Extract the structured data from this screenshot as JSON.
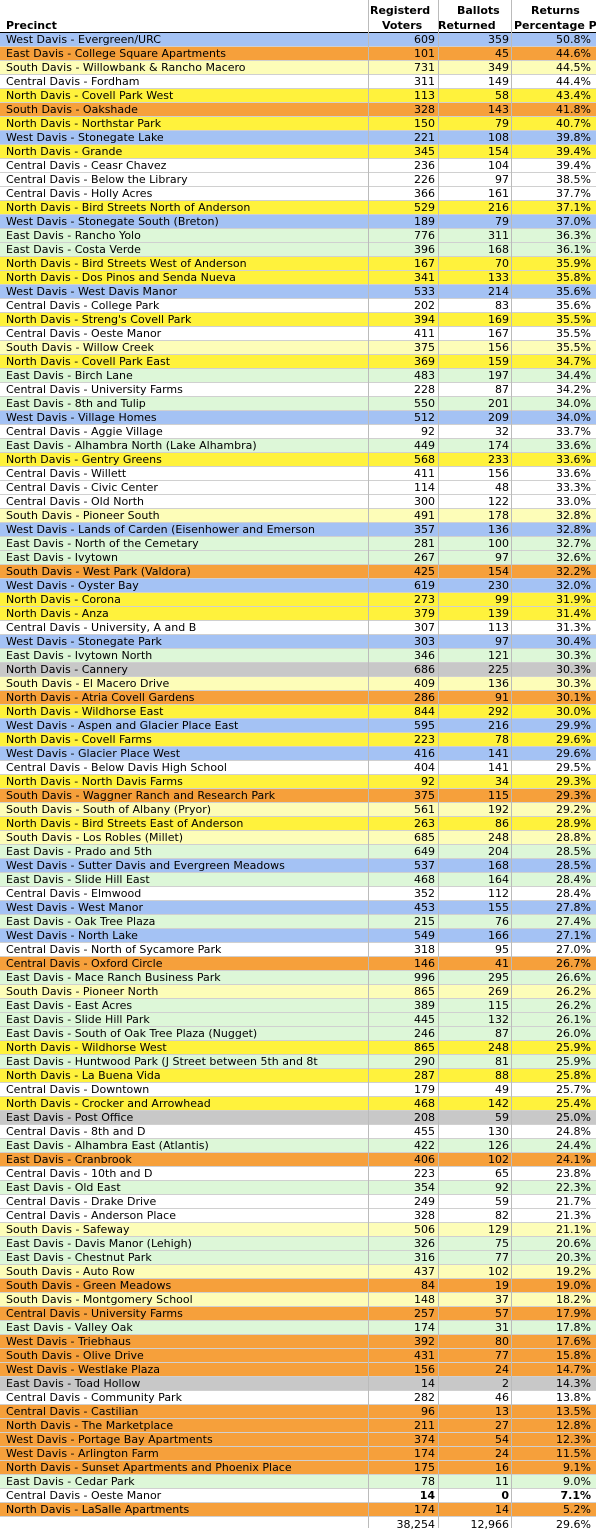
{
  "header": {
    "precinct": "Precinct",
    "registered_1": "Registerd",
    "registered_2": "Voters",
    "ballots_1": "Ballots",
    "ballots_2": "Returned",
    "returns_1": "Returns",
    "returns_2": "Percentage P"
  },
  "colors": {
    "blue": "#a4c2f4",
    "orange": "#f6a03b",
    "yellow": "#fff23c",
    "lightyellow": "#fdfdb8",
    "green": "#ddf7d8",
    "gray": "#c8c8c8",
    "white": "#ffffff"
  },
  "rows": [
    {
      "name": "West Davis - Evergreen/URC",
      "reg": "609",
      "bal": "359",
      "pct": "50.8%",
      "c": "blue"
    },
    {
      "name": "East Davis - College Square Apartments",
      "reg": "101",
      "bal": "45",
      "pct": "44.6%",
      "c": "orange"
    },
    {
      "name": "South Davis - Willowbank & Rancho Macero",
      "reg": "731",
      "bal": "349",
      "pct": "44.5%",
      "c": "lightyellow"
    },
    {
      "name": "Central Davis - Fordham",
      "reg": "311",
      "bal": "149",
      "pct": "44.4%",
      "c": "white"
    },
    {
      "name": "North Davis - Covell Park West",
      "reg": "113",
      "bal": "58",
      "pct": "43.4%",
      "c": "yellow"
    },
    {
      "name": "South Davis - Oakshade",
      "reg": "328",
      "bal": "143",
      "pct": "41.8%",
      "c": "orange"
    },
    {
      "name": "North Davis - Northstar Park",
      "reg": "150",
      "bal": "79",
      "pct": "40.7%",
      "c": "yellow"
    },
    {
      "name": "West Davis - Stonegate Lake",
      "reg": "221",
      "bal": "108",
      "pct": "39.8%",
      "c": "blue"
    },
    {
      "name": "North Davis - Grande",
      "reg": "345",
      "bal": "154",
      "pct": "39.4%",
      "c": "yellow"
    },
    {
      "name": "Central Davis - Ceasr Chavez",
      "reg": "236",
      "bal": "104",
      "pct": "39.4%",
      "c": "white"
    },
    {
      "name": "Central Davis - Below the Library",
      "reg": "226",
      "bal": "97",
      "pct": "38.5%",
      "c": "white"
    },
    {
      "name": "Central Davis - Holly Acres",
      "reg": "366",
      "bal": "161",
      "pct": "37.7%",
      "c": "white"
    },
    {
      "name": "North Davis - Bird Streets North of Anderson",
      "reg": "529",
      "bal": "216",
      "pct": "37.1%",
      "c": "yellow"
    },
    {
      "name": "West Davis - Stonegate South (Breton)",
      "reg": "189",
      "bal": "79",
      "pct": "37.0%",
      "c": "blue"
    },
    {
      "name": "East Davis - Rancho Yolo",
      "reg": "776",
      "bal": "311",
      "pct": "36.3%",
      "c": "green"
    },
    {
      "name": "East Davis - Costa Verde",
      "reg": "396",
      "bal": "168",
      "pct": "36.1%",
      "c": "green"
    },
    {
      "name": "North Davis - Bird Streets West of Anderson",
      "reg": "167",
      "bal": "70",
      "pct": "35.9%",
      "c": "yellow"
    },
    {
      "name": "North Davis - Dos Pinos and Senda Nueva",
      "reg": "341",
      "bal": "133",
      "pct": "35.8%",
      "c": "yellow"
    },
    {
      "name": "West Davis - West Davis Manor",
      "reg": "533",
      "bal": "214",
      "pct": "35.6%",
      "c": "blue"
    },
    {
      "name": "Central Davis - College Park",
      "reg": "202",
      "bal": "83",
      "pct": "35.6%",
      "c": "white"
    },
    {
      "name": "North Davis - Streng's Covell Park",
      "reg": "394",
      "bal": "169",
      "pct": "35.5%",
      "c": "yellow"
    },
    {
      "name": "Central Davis - Oeste Manor",
      "reg": "411",
      "bal": "167",
      "pct": "35.5%",
      "c": "white"
    },
    {
      "name": "South Davis - Willow Creek",
      "reg": "375",
      "bal": "156",
      "pct": "35.5%",
      "c": "lightyellow"
    },
    {
      "name": "North Davis - Covell Park East",
      "reg": "369",
      "bal": "159",
      "pct": "34.7%",
      "c": "yellow"
    },
    {
      "name": "East Davis - Birch Lane",
      "reg": "483",
      "bal": "197",
      "pct": "34.4%",
      "c": "green"
    },
    {
      "name": "Central Davis - University Farms",
      "reg": "228",
      "bal": "87",
      "pct": "34.2%",
      "c": "white"
    },
    {
      "name": "East Davis - 8th and Tulip",
      "reg": "550",
      "bal": "201",
      "pct": "34.0%",
      "c": "green"
    },
    {
      "name": "West Davis - Village Homes",
      "reg": "512",
      "bal": "209",
      "pct": "34.0%",
      "c": "blue"
    },
    {
      "name": "Central Davis - Aggie Village",
      "reg": "92",
      "bal": "32",
      "pct": "33.7%",
      "c": "white"
    },
    {
      "name": "East Davis - Alhambra North (Lake Alhambra)",
      "reg": "449",
      "bal": "174",
      "pct": "33.6%",
      "c": "green"
    },
    {
      "name": "North Davis - Gentry Greens",
      "reg": "568",
      "bal": "233",
      "pct": "33.6%",
      "c": "yellow"
    },
    {
      "name": "Central Davis - Willett",
      "reg": "411",
      "bal": "156",
      "pct": "33.6%",
      "c": "white"
    },
    {
      "name": "Central Davis - Civic Center",
      "reg": "114",
      "bal": "48",
      "pct": "33.3%",
      "c": "white"
    },
    {
      "name": "Central Davis - Old North",
      "reg": "300",
      "bal": "122",
      "pct": "33.0%",
      "c": "white"
    },
    {
      "name": "South Davis - Pioneer South",
      "reg": "491",
      "bal": "178",
      "pct": "32.8%",
      "c": "lightyellow"
    },
    {
      "name": "West Davis - Lands of Carden (Eisenhower and Emerson",
      "reg": "357",
      "bal": "136",
      "pct": "32.8%",
      "c": "blue"
    },
    {
      "name": "East Davis - North of the Cemetary",
      "reg": "281",
      "bal": "100",
      "pct": "32.7%",
      "c": "green"
    },
    {
      "name": "East Davis - Ivytown",
      "reg": "267",
      "bal": "97",
      "pct": "32.6%",
      "c": "green"
    },
    {
      "name": "South Davis - West Park (Valdora)",
      "reg": "425",
      "bal": "154",
      "pct": "32.2%",
      "c": "orange"
    },
    {
      "name": "West Davis - Oyster Bay",
      "reg": "619",
      "bal": "230",
      "pct": "32.0%",
      "c": "blue"
    },
    {
      "name": "North Davis - Corona",
      "reg": "273",
      "bal": "99",
      "pct": "31.9%",
      "c": "yellow"
    },
    {
      "name": "North Davis - Anza",
      "reg": "379",
      "bal": "139",
      "pct": "31.4%",
      "c": "yellow"
    },
    {
      "name": "Central Davis - University, A and B",
      "reg": "307",
      "bal": "113",
      "pct": "31.3%",
      "c": "white"
    },
    {
      "name": "West Davis - Stonegate Park",
      "reg": "303",
      "bal": "97",
      "pct": "30.4%",
      "c": "blue"
    },
    {
      "name": "East Davis - Ivytown North",
      "reg": "346",
      "bal": "121",
      "pct": "30.3%",
      "c": "green"
    },
    {
      "name": "North Davis - Cannery",
      "reg": "686",
      "bal": "225",
      "pct": "30.3%",
      "c": "gray"
    },
    {
      "name": "South Davis - El Macero Drive",
      "reg": "409",
      "bal": "136",
      "pct": "30.3%",
      "c": "lightyellow"
    },
    {
      "name": "North Davis - Atria Covell Gardens",
      "reg": "286",
      "bal": "91",
      "pct": "30.1%",
      "c": "orange"
    },
    {
      "name": "North Davis - Wildhorse East",
      "reg": "844",
      "bal": "292",
      "pct": "30.0%",
      "c": "yellow"
    },
    {
      "name": "West Davis - Aspen and Glacier Place East",
      "reg": "595",
      "bal": "216",
      "pct": "29.9%",
      "c": "blue"
    },
    {
      "name": "North Davis - Covell Farms",
      "reg": "223",
      "bal": "78",
      "pct": "29.6%",
      "c": "yellow"
    },
    {
      "name": "West Davis - Glacier Place West",
      "reg": "416",
      "bal": "141",
      "pct": "29.6%",
      "c": "blue"
    },
    {
      "name": "Central Davis - Below Davis High School",
      "reg": "404",
      "bal": "141",
      "pct": "29.5%",
      "c": "white"
    },
    {
      "name": "North Davis - North Davis Farms",
      "reg": "92",
      "bal": "34",
      "pct": "29.3%",
      "c": "yellow"
    },
    {
      "name": "South Davis - Waggner Ranch and Research Park",
      "reg": "375",
      "bal": "115",
      "pct": "29.3%",
      "c": "orange"
    },
    {
      "name": "South Davis - South of Albany (Pryor)",
      "reg": "561",
      "bal": "192",
      "pct": "29.2%",
      "c": "lightyellow"
    },
    {
      "name": "North Davis - Bird Streets East of Anderson",
      "reg": "263",
      "bal": "86",
      "pct": "28.9%",
      "c": "yellow"
    },
    {
      "name": "South Davis - Los Robles (Millet)",
      "reg": "685",
      "bal": "248",
      "pct": "28.8%",
      "c": "lightyellow"
    },
    {
      "name": "East Davis - Prado and 5th",
      "reg": "649",
      "bal": "204",
      "pct": "28.5%",
      "c": "green"
    },
    {
      "name": "West Davis - Sutter Davis and Evergreen Meadows",
      "reg": "537",
      "bal": "168",
      "pct": "28.5%",
      "c": "blue"
    },
    {
      "name": "East Davis - Slide Hill East",
      "reg": "468",
      "bal": "164",
      "pct": "28.4%",
      "c": "green"
    },
    {
      "name": "Central Davis - Elmwood",
      "reg": "352",
      "bal": "112",
      "pct": "28.4%",
      "c": "white"
    },
    {
      "name": "West Davis - West Manor",
      "reg": "453",
      "bal": "155",
      "pct": "27.8%",
      "c": "blue"
    },
    {
      "name": "East Davis - Oak Tree Plaza",
      "reg": "215",
      "bal": "76",
      "pct": "27.4%",
      "c": "green"
    },
    {
      "name": "West Davis - North Lake",
      "reg": "549",
      "bal": "166",
      "pct": "27.1%",
      "c": "blue"
    },
    {
      "name": "Central Davis - North of Sycamore Park",
      "reg": "318",
      "bal": "95",
      "pct": "27.0%",
      "c": "white"
    },
    {
      "name": "Central Davis - Oxford Circle",
      "reg": "146",
      "bal": "41",
      "pct": "26.7%",
      "c": "orange"
    },
    {
      "name": "East Davis - Mace Ranch Business Park",
      "reg": "996",
      "bal": "295",
      "pct": "26.6%",
      "c": "green"
    },
    {
      "name": "South Davis - Pioneer North",
      "reg": "865",
      "bal": "269",
      "pct": "26.2%",
      "c": "lightyellow"
    },
    {
      "name": "East Davis - East Acres",
      "reg": "389",
      "bal": "115",
      "pct": "26.2%",
      "c": "green"
    },
    {
      "name": "East Davis - Slide Hill Park",
      "reg": "445",
      "bal": "132",
      "pct": "26.1%",
      "c": "green"
    },
    {
      "name": "East Davis - South of Oak Tree Plaza (Nugget)",
      "reg": "246",
      "bal": "87",
      "pct": "26.0%",
      "c": "green"
    },
    {
      "name": "North Davis - Wildhorse West",
      "reg": "865",
      "bal": "248",
      "pct": "25.9%",
      "c": "yellow"
    },
    {
      "name": "East Davis - Huntwood Park (J Street between 5th and 8t",
      "reg": "290",
      "bal": "81",
      "pct": "25.9%",
      "c": "green"
    },
    {
      "name": "North Davis - La Buena Vida",
      "reg": "287",
      "bal": "88",
      "pct": "25.8%",
      "c": "yellow"
    },
    {
      "name": "Central Davis - Downtown",
      "reg": "179",
      "bal": "49",
      "pct": "25.7%",
      "c": "white"
    },
    {
      "name": "North Davis - Crocker and Arrowhead",
      "reg": "468",
      "bal": "142",
      "pct": "25.4%",
      "c": "yellow"
    },
    {
      "name": "East Davis - Post Office",
      "reg": "208",
      "bal": "59",
      "pct": "25.0%",
      "c": "gray"
    },
    {
      "name": "Central Davis - 8th and D",
      "reg": "455",
      "bal": "130",
      "pct": "24.8%",
      "c": "white"
    },
    {
      "name": "East Davis - Alhambra East (Atlantis)",
      "reg": "422",
      "bal": "126",
      "pct": "24.4%",
      "c": "green"
    },
    {
      "name": "East Davis - Cranbrook",
      "reg": "406",
      "bal": "102",
      "pct": "24.1%",
      "c": "orange"
    },
    {
      "name": "Central Davis - 10th and D",
      "reg": "223",
      "bal": "65",
      "pct": "23.8%",
      "c": "white"
    },
    {
      "name": "East Davis - Old East",
      "reg": "354",
      "bal": "92",
      "pct": "22.3%",
      "c": "green"
    },
    {
      "name": "Central Davis - Drake Drive",
      "reg": "249",
      "bal": "59",
      "pct": "21.7%",
      "c": "white"
    },
    {
      "name": "Central Davis - Anderson Place",
      "reg": "328",
      "bal": "82",
      "pct": "21.3%",
      "c": "white"
    },
    {
      "name": "South Davis - Safeway",
      "reg": "506",
      "bal": "129",
      "pct": "21.1%",
      "c": "lightyellow"
    },
    {
      "name": "East Davis - Davis Manor (Lehigh)",
      "reg": "326",
      "bal": "75",
      "pct": "20.6%",
      "c": "green"
    },
    {
      "name": "East Davis - Chestnut Park",
      "reg": "316",
      "bal": "77",
      "pct": "20.3%",
      "c": "green"
    },
    {
      "name": "South Davis - Auto Row",
      "reg": "437",
      "bal": "102",
      "pct": "19.2%",
      "c": "lightyellow"
    },
    {
      "name": "South Davis - Green Meadows",
      "reg": "84",
      "bal": "19",
      "pct": "19.0%",
      "c": "orange"
    },
    {
      "name": "South Davis - Montgomery School",
      "reg": "148",
      "bal": "37",
      "pct": "18.2%",
      "c": "lightyellow"
    },
    {
      "name": "Central Davis - University Farms",
      "reg": "257",
      "bal": "57",
      "pct": "17.9%",
      "c": "orange"
    },
    {
      "name": "East Davis - Valley Oak",
      "reg": "174",
      "bal": "31",
      "pct": "17.8%",
      "c": "green"
    },
    {
      "name": "West Davis - Triebhaus",
      "reg": "392",
      "bal": "80",
      "pct": "17.6%",
      "c": "orange"
    },
    {
      "name": "South Davis - Olive Drive",
      "reg": "431",
      "bal": "77",
      "pct": "15.8%",
      "c": "orange"
    },
    {
      "name": "West Davis - Westlake Plaza",
      "reg": "156",
      "bal": "24",
      "pct": "14.7%",
      "c": "orange"
    },
    {
      "name": "East Davis - Toad Hollow",
      "reg": "14",
      "bal": "2",
      "pct": "14.3%",
      "c": "gray"
    },
    {
      "name": "Central Davis - Community Park",
      "reg": "282",
      "bal": "46",
      "pct": "13.8%",
      "c": "white"
    },
    {
      "name": "Central Davis - Castilian",
      "reg": "96",
      "bal": "13",
      "pct": "13.5%",
      "c": "orange"
    },
    {
      "name": "North Davis - The Marketplace",
      "reg": "211",
      "bal": "27",
      "pct": "12.8%",
      "c": "orange"
    },
    {
      "name": "West Davis - Portage Bay Apartments",
      "reg": "374",
      "bal": "54",
      "pct": "12.3%",
      "c": "orange"
    },
    {
      "name": "West Davis - Arlington Farm",
      "reg": "174",
      "bal": "24",
      "pct": "11.5%",
      "c": "orange"
    },
    {
      "name": "North Davis - Sunset Apartments and Phoenix Place",
      "reg": "175",
      "bal": "16",
      "pct": "9.1%",
      "c": "orange"
    },
    {
      "name": "East Davis - Cedar Park",
      "reg": "78",
      "bal": "11",
      "pct": "9.0%",
      "c": "green"
    },
    {
      "name": "Central Davis - Oeste Manor",
      "reg": "14",
      "bal": "0",
      "pct": "7.1%",
      "c": "white",
      "bold": true
    },
    {
      "name": "North Davis - LaSalle Apartments",
      "reg": "174",
      "bal": "14",
      "pct": "5.2%",
      "c": "orange"
    }
  ],
  "totals": {
    "reg": "38,254",
    "bal": "12,966",
    "pct": "29.6%"
  }
}
